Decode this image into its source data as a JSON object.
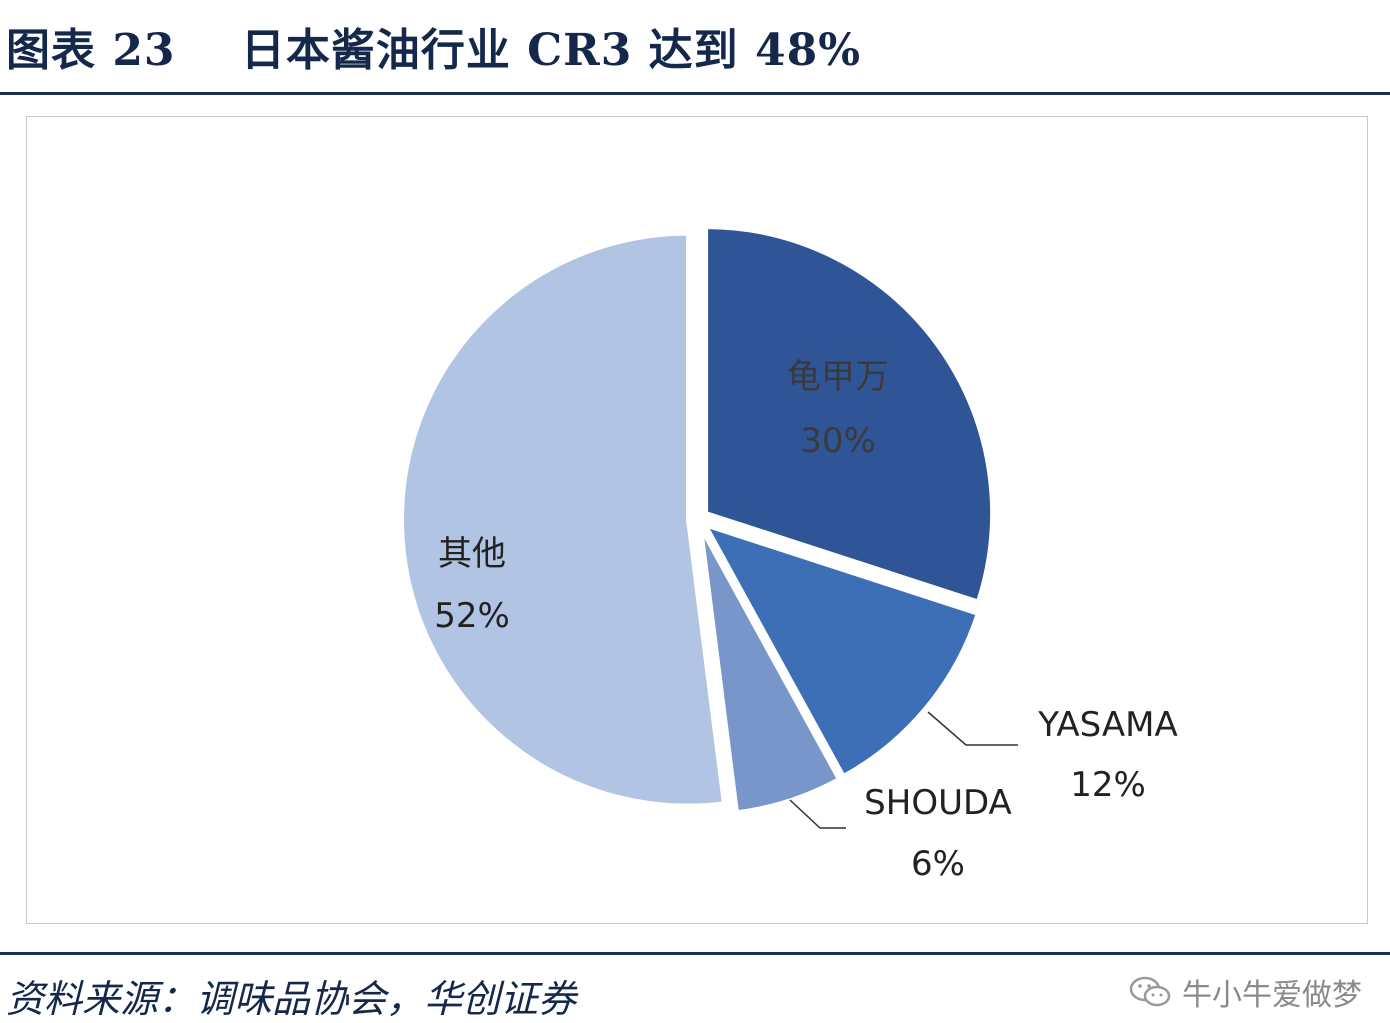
{
  "title": "图表 23    日本酱油行业 CR3 达到 48%",
  "source": "资料来源：调味品协会，华创证券",
  "watermark": "牛小牛爱做梦",
  "watermark_icon": "wechat-icon",
  "chart_data": {
    "type": "pie",
    "title": "",
    "start_angle_deg": 0,
    "direction": "clockwise",
    "legend": "none",
    "slices": [
      {
        "name": "龟甲万",
        "value": 30,
        "label": "30%",
        "color": "#2f5597"
      },
      {
        "name": "YASAMA",
        "value": 12,
        "label": "12%",
        "color": "#3d6fb6"
      },
      {
        "name": "SHOUDA",
        "value": 6,
        "label": "6%",
        "color": "#7896c9"
      },
      {
        "name": "其他",
        "value": 52,
        "label": "52%",
        "color": "#b2c4e4"
      }
    ]
  }
}
